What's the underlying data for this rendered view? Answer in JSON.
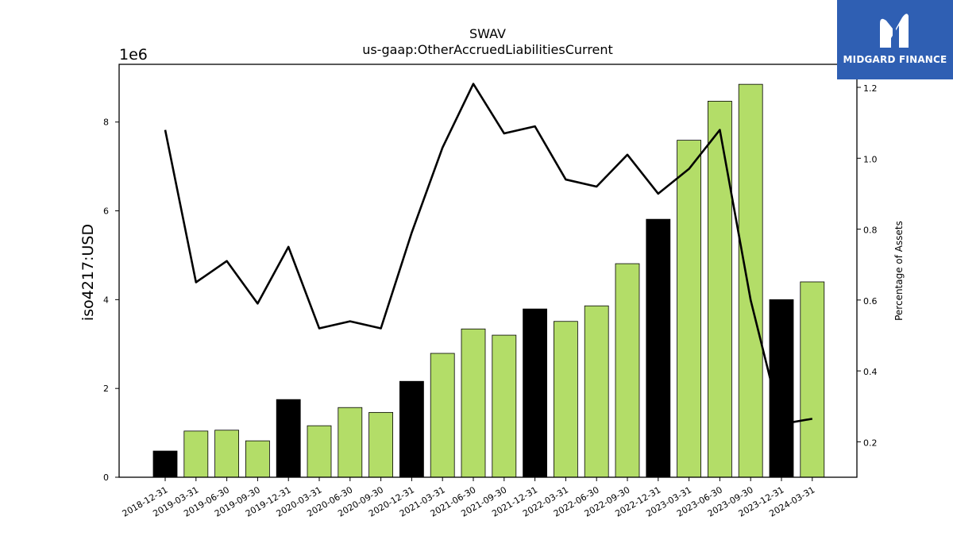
{
  "chart_data": {
    "type": "bar",
    "title": "SWAV",
    "subtitle": "us-gaap:OtherAccruedLiabilitiesCurrent",
    "ylabel": "iso4217:USD",
    "y_offset_label": "1e6",
    "y2label": "Percentage of Assets",
    "categories": [
      "2018-12-31",
      "2019-03-31",
      "2019-06-30",
      "2019-09-30",
      "2019-12-31",
      "2020-03-31",
      "2020-06-30",
      "2020-09-30",
      "2020-12-31",
      "2021-03-31",
      "2021-06-30",
      "2021-09-30",
      "2021-12-31",
      "2022-03-31",
      "2022-06-30",
      "2022-09-30",
      "2022-12-31",
      "2023-03-31",
      "2023-06-30",
      "2023-09-30",
      "2023-12-31",
      "2024-03-31"
    ],
    "values": [
      590000,
      1040000,
      1060000,
      820000,
      1750000,
      1160000,
      1570000,
      1460000,
      2160000,
      2790000,
      3340000,
      3200000,
      3790000,
      3510000,
      3860000,
      4810000,
      5810000,
      7590000,
      8470000,
      8850000,
      4000000,
      4400000
    ],
    "bar_colors": [
      "#000000",
      "#b3dd68",
      "#b3dd68",
      "#b3dd68",
      "#000000",
      "#b3dd68",
      "#b3dd68",
      "#b3dd68",
      "#000000",
      "#b3dd68",
      "#b3dd68",
      "#b3dd68",
      "#000000",
      "#b3dd68",
      "#b3dd68",
      "#b3dd68",
      "#000000",
      "#b3dd68",
      "#b3dd68",
      "#b3dd68",
      "#000000",
      "#b3dd68"
    ],
    "line_values": [
      1.08,
      0.65,
      0.71,
      0.59,
      0.75,
      0.52,
      0.54,
      0.52,
      0.79,
      1.03,
      1.21,
      1.07,
      1.09,
      0.94,
      0.92,
      1.01,
      0.9,
      0.97,
      1.08,
      0.6,
      0.25,
      0.265
    ],
    "ylim": [
      0,
      9300000
    ],
    "y2lim": [
      0.1,
      1.265
    ],
    "yticks": [
      0,
      2000000,
      4000000,
      6000000,
      8000000
    ],
    "ytick_labels": [
      "0",
      "2",
      "4",
      "6",
      "8"
    ],
    "y2ticks": [
      0.2,
      0.4,
      0.6,
      0.8,
      1.0,
      1.2
    ],
    "y2tick_labels": [
      "0.2",
      "0.4",
      "0.6",
      "0.8",
      "1.0",
      "1.2"
    ],
    "grid": false,
    "legend": "none"
  },
  "logo": {
    "brand": "MIDGARD FINANCE",
    "color": "#2f5fb3"
  }
}
